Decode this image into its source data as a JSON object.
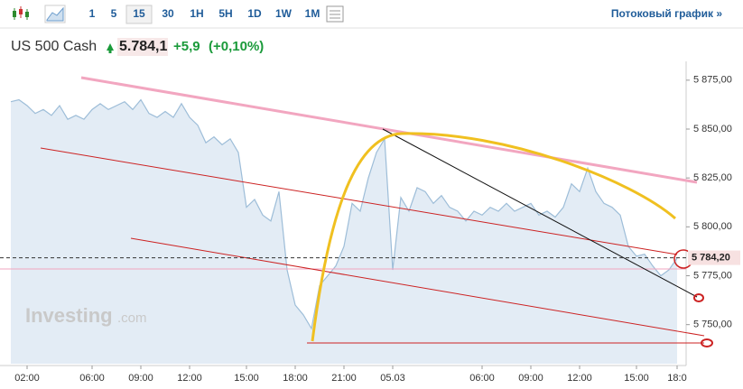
{
  "toolbar": {
    "intervals": [
      "1",
      "5",
      "15",
      "30",
      "1H",
      "5H",
      "1D",
      "1W",
      "1M"
    ],
    "selected": "15",
    "stream_link": "Потоковый график »"
  },
  "instrument": {
    "name": "US 500 Cash",
    "price": "5.784,1",
    "change": "+5,9",
    "change_pct": "(+0,10%)"
  },
  "watermark": {
    "brand": "Investing",
    "suffix": ".com"
  },
  "chart_data": {
    "type": "area",
    "categories": [
      null,
      null,
      "02:00",
      null,
      null,
      null,
      null,
      null,
      null,
      null,
      "06:00",
      null,
      null,
      null,
      null,
      null,
      "09:00",
      null,
      null,
      null,
      null,
      null,
      "12:00",
      null,
      null,
      null,
      null,
      null,
      null,
      "15:00",
      null,
      null,
      null,
      null,
      null,
      "18:00",
      null,
      null,
      null,
      null,
      null,
      "21:00",
      null,
      null,
      null,
      null,
      null,
      "05.03",
      null,
      null,
      null,
      null,
      null,
      null,
      null,
      null,
      null,
      null,
      "06:00",
      null,
      null,
      null,
      null,
      null,
      "09:00",
      null,
      null,
      null,
      null,
      null,
      "12:00",
      null,
      null,
      null,
      null,
      null,
      null,
      "15:00",
      null,
      null,
      null,
      null,
      "18:0"
    ],
    "series": [
      {
        "color": "#9dbdd8",
        "fill": "#e3ecf5",
        "values": [
          5864,
          5865,
          5862,
          5858,
          5860,
          5857,
          5862,
          5855,
          5857,
          5855,
          5860,
          5863,
          5860,
          5862,
          5864,
          5860,
          5865,
          5858,
          5856,
          5859,
          5856,
          5863,
          5856,
          5852,
          5843,
          5846,
          5842,
          5845,
          5838,
          5810,
          5814,
          5806,
          5803,
          5818,
          5778,
          5760,
          5755,
          5748,
          5770,
          5775,
          5780,
          5790,
          5812,
          5808,
          5825,
          5838,
          5845,
          5778,
          5815,
          5808,
          5820,
          5818,
          5812,
          5816,
          5810,
          5808,
          5803,
          5808,
          5806,
          5810,
          5808,
          5812,
          5808,
          5810,
          5812,
          5806,
          5808,
          5805,
          5810,
          5822,
          5818,
          5830,
          5818,
          5812,
          5810,
          5806,
          5790,
          5785,
          5786,
          5780,
          5775,
          5778,
          5784
        ]
      }
    ],
    "ylim": [
      5730,
      5880
    ],
    "yticks": [
      {
        "value": 5750,
        "label": "5 750,00"
      },
      {
        "value": 5775,
        "label": "5 775,00"
      },
      {
        "value": 5800,
        "label": "5 800,00"
      },
      {
        "value": 5825,
        "label": "5 825,00"
      },
      {
        "value": 5850,
        "label": "5 850,00"
      },
      {
        "value": 5875,
        "label": "5 875,00"
      }
    ],
    "last_price": {
      "value": 5784.2,
      "label": "5 784,20"
    }
  }
}
